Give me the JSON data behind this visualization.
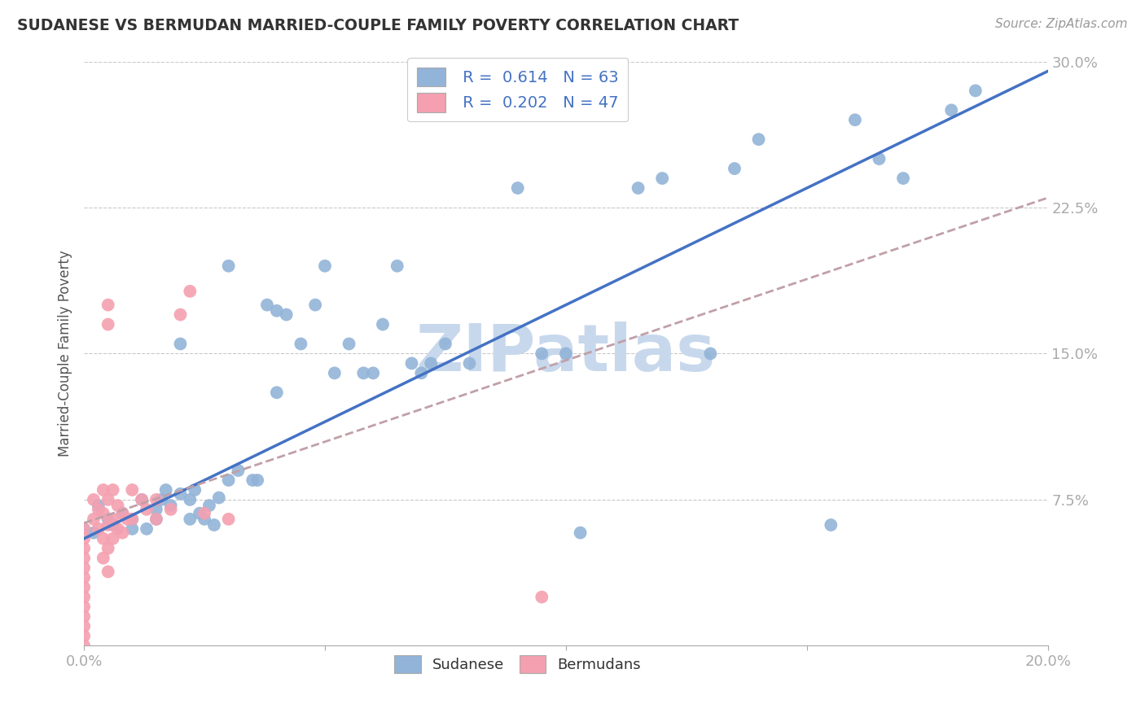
{
  "title": "SUDANESE VS BERMUDAN MARRIED-COUPLE FAMILY POVERTY CORRELATION CHART",
  "source": "Source: ZipAtlas.com",
  "ylabel": "Married-Couple Family Poverty",
  "xlim": [
    0.0,
    0.2
  ],
  "ylim": [
    0.0,
    0.3
  ],
  "yticks": [
    0.0,
    0.075,
    0.15,
    0.225,
    0.3
  ],
  "ytick_labels": [
    "",
    "7.5%",
    "15.0%",
    "22.5%",
    "30.0%"
  ],
  "xticks": [
    0.0,
    0.05,
    0.1,
    0.15,
    0.2
  ],
  "xtick_labels": [
    "0.0%",
    "",
    "",
    "",
    "20.0%"
  ],
  "sudanese_color": "#92b4d8",
  "bermudan_color": "#f4a0b0",
  "sudanese_line_color": "#4472c4",
  "bermudan_line_color": "#c0a0a8",
  "watermark": "ZIPatlas",
  "watermark_color": "#c8d8ec",
  "sudanese_scatter": [
    [
      0.0,
      0.06
    ],
    [
      0.002,
      0.058
    ],
    [
      0.003,
      0.072
    ],
    [
      0.005,
      0.065
    ],
    [
      0.006,
      0.062
    ],
    [
      0.008,
      0.068
    ],
    [
      0.01,
      0.065
    ],
    [
      0.01,
      0.06
    ],
    [
      0.012,
      0.075
    ],
    [
      0.013,
      0.06
    ],
    [
      0.015,
      0.07
    ],
    [
      0.015,
      0.065
    ],
    [
      0.016,
      0.075
    ],
    [
      0.017,
      0.08
    ],
    [
      0.018,
      0.072
    ],
    [
      0.02,
      0.155
    ],
    [
      0.02,
      0.078
    ],
    [
      0.022,
      0.065
    ],
    [
      0.022,
      0.075
    ],
    [
      0.023,
      0.08
    ],
    [
      0.024,
      0.068
    ],
    [
      0.025,
      0.065
    ],
    [
      0.026,
      0.072
    ],
    [
      0.027,
      0.062
    ],
    [
      0.028,
      0.076
    ],
    [
      0.03,
      0.195
    ],
    [
      0.03,
      0.085
    ],
    [
      0.032,
      0.09
    ],
    [
      0.035,
      0.085
    ],
    [
      0.036,
      0.085
    ],
    [
      0.038,
      0.175
    ],
    [
      0.04,
      0.172
    ],
    [
      0.04,
      0.13
    ],
    [
      0.042,
      0.17
    ],
    [
      0.045,
      0.155
    ],
    [
      0.048,
      0.175
    ],
    [
      0.05,
      0.195
    ],
    [
      0.052,
      0.14
    ],
    [
      0.055,
      0.155
    ],
    [
      0.058,
      0.14
    ],
    [
      0.06,
      0.14
    ],
    [
      0.062,
      0.165
    ],
    [
      0.065,
      0.195
    ],
    [
      0.068,
      0.145
    ],
    [
      0.07,
      0.14
    ],
    [
      0.072,
      0.145
    ],
    [
      0.075,
      0.155
    ],
    [
      0.08,
      0.145
    ],
    [
      0.09,
      0.235
    ],
    [
      0.095,
      0.15
    ],
    [
      0.1,
      0.15
    ],
    [
      0.103,
      0.058
    ],
    [
      0.115,
      0.235
    ],
    [
      0.12,
      0.24
    ],
    [
      0.13,
      0.15
    ],
    [
      0.135,
      0.245
    ],
    [
      0.14,
      0.26
    ],
    [
      0.155,
      0.062
    ],
    [
      0.16,
      0.27
    ],
    [
      0.165,
      0.25
    ],
    [
      0.17,
      0.24
    ],
    [
      0.18,
      0.275
    ],
    [
      0.185,
      0.285
    ]
  ],
  "bermudan_scatter": [
    [
      0.0,
      0.06
    ],
    [
      0.0,
      0.055
    ],
    [
      0.0,
      0.05
    ],
    [
      0.0,
      0.045
    ],
    [
      0.0,
      0.04
    ],
    [
      0.0,
      0.035
    ],
    [
      0.0,
      0.03
    ],
    [
      0.0,
      0.025
    ],
    [
      0.0,
      0.02
    ],
    [
      0.0,
      0.015
    ],
    [
      0.0,
      0.01
    ],
    [
      0.0,
      0.005
    ],
    [
      0.0,
      0.0
    ],
    [
      0.002,
      0.075
    ],
    [
      0.002,
      0.065
    ],
    [
      0.003,
      0.07
    ],
    [
      0.003,
      0.06
    ],
    [
      0.004,
      0.08
    ],
    [
      0.004,
      0.068
    ],
    [
      0.004,
      0.055
    ],
    [
      0.004,
      0.045
    ],
    [
      0.005,
      0.175
    ],
    [
      0.005,
      0.165
    ],
    [
      0.005,
      0.075
    ],
    [
      0.005,
      0.062
    ],
    [
      0.005,
      0.05
    ],
    [
      0.005,
      0.038
    ],
    [
      0.006,
      0.08
    ],
    [
      0.006,
      0.065
    ],
    [
      0.006,
      0.055
    ],
    [
      0.007,
      0.072
    ],
    [
      0.007,
      0.06
    ],
    [
      0.008,
      0.068
    ],
    [
      0.008,
      0.058
    ],
    [
      0.009,
      0.065
    ],
    [
      0.01,
      0.08
    ],
    [
      0.01,
      0.065
    ],
    [
      0.012,
      0.075
    ],
    [
      0.013,
      0.07
    ],
    [
      0.015,
      0.075
    ],
    [
      0.015,
      0.065
    ],
    [
      0.018,
      0.07
    ],
    [
      0.02,
      0.17
    ],
    [
      0.022,
      0.182
    ],
    [
      0.025,
      0.068
    ],
    [
      0.03,
      0.065
    ],
    [
      0.095,
      0.025
    ]
  ],
  "sudanese_line": [
    [
      0.0,
      0.055
    ],
    [
      0.2,
      0.295
    ]
  ],
  "bermudan_line": [
    [
      0.0,
      0.063
    ],
    [
      0.2,
      0.23
    ]
  ]
}
